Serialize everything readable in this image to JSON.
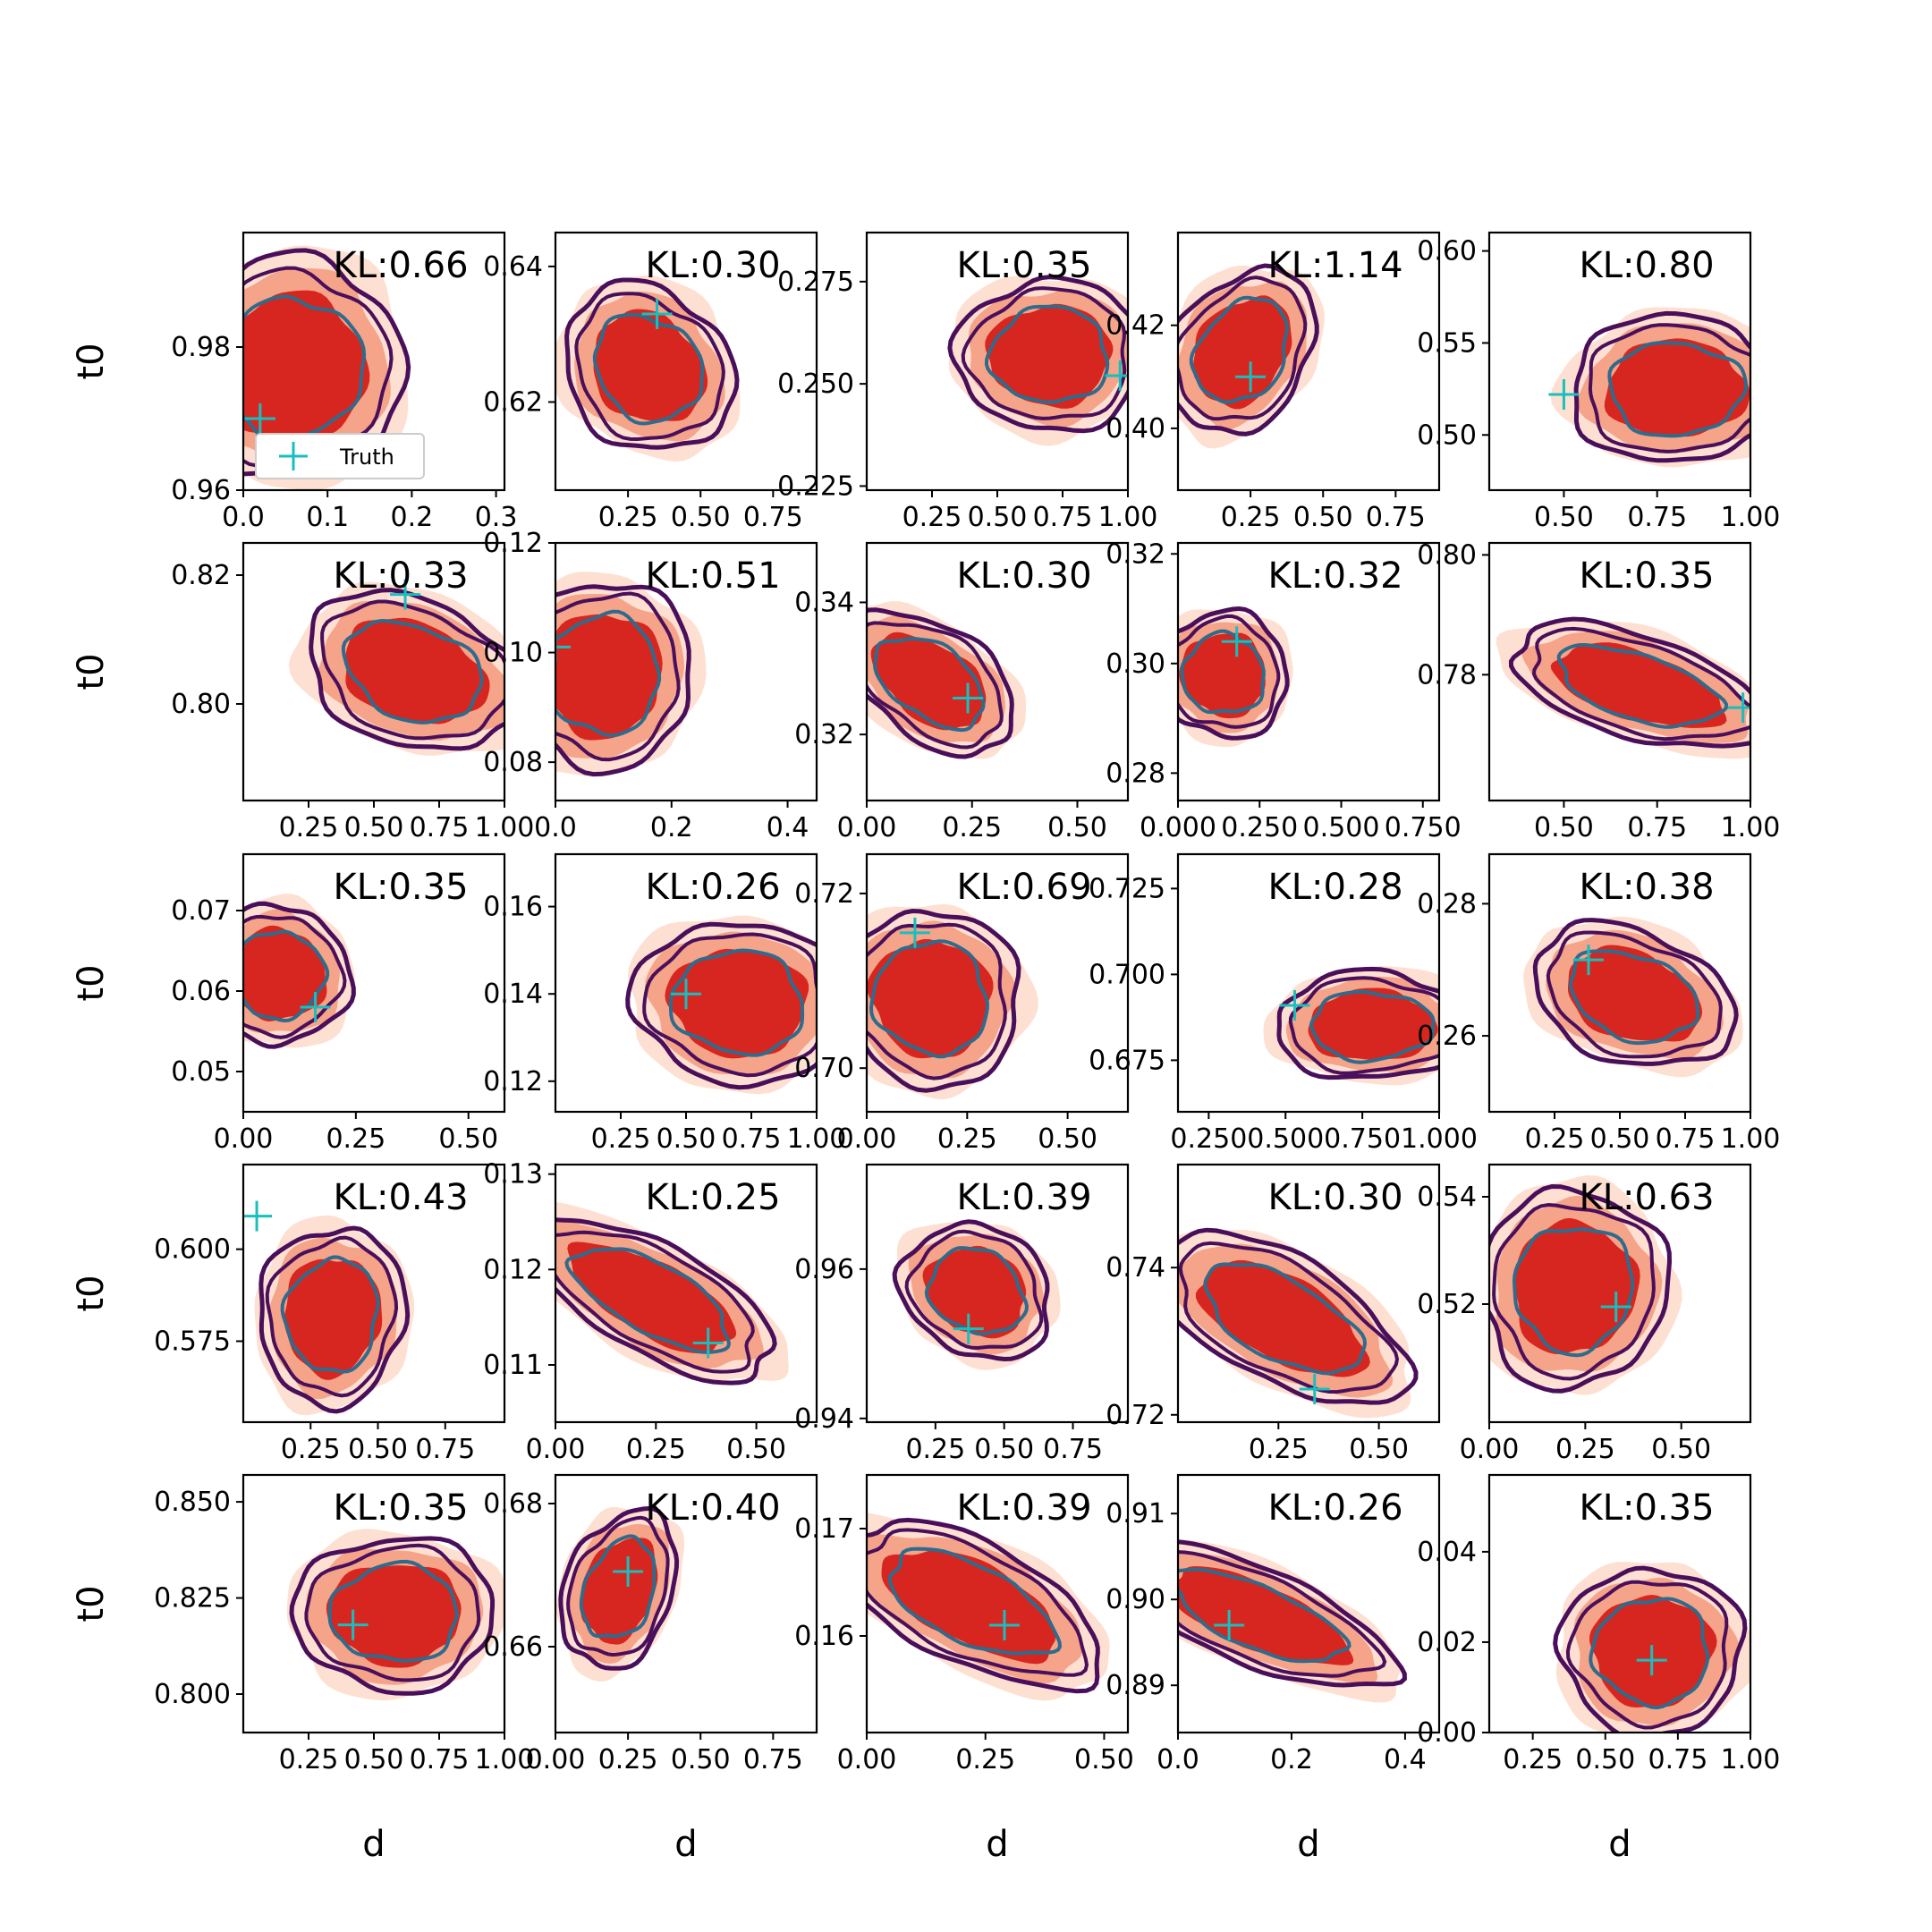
{
  "chart_data": {
    "type": "contour",
    "layout": {
      "rows": 5,
      "cols": 5
    },
    "colors": {
      "fill_light": "#fde0d2",
      "fill_mid": "#f5a48a",
      "fill_dark": "#d7261f",
      "contour_outer": "#4a0f5a",
      "contour_inner": "#2f6b8c",
      "truth_marker": "#17bfbf"
    },
    "xlabel": "d",
    "ylabel": "t0",
    "legend": {
      "label": "Truth",
      "position": "lower-left of first panel"
    },
    "panels": [
      {
        "kl": "KL:0.66",
        "xticks": [
          "0.0",
          "0.1",
          "0.2",
          "0.3"
        ],
        "yticks": [
          "0.96",
          "0.98"
        ],
        "xlim": [
          0,
          0.31
        ],
        "ylim": [
          0.96,
          0.996
        ],
        "center": [
          0.06,
          0.977
        ],
        "spread": [
          0.09,
          0.011
        ],
        "angle": 0.35,
        "truth": [
          0.02,
          0.97
        ]
      },
      {
        "kl": "KL:0.30",
        "xticks": [
          "0.25",
          "0.50",
          "0.75"
        ],
        "yticks": [
          "0.62",
          "0.64"
        ],
        "xlim": [
          0,
          0.9
        ],
        "ylim": [
          0.607,
          0.645
        ],
        "center": [
          0.32,
          0.625
        ],
        "spread": [
          0.22,
          0.008
        ],
        "angle": 0.75,
        "truth": [
          0.35,
          0.633
        ]
      },
      {
        "kl": "KL:0.35",
        "xticks": [
          "0.25",
          "0.50",
          "0.75",
          "1.00"
        ],
        "yticks": [
          "0.225",
          "0.250",
          "0.275"
        ],
        "xlim": [
          0,
          1.0
        ],
        "ylim": [
          0.224,
          0.287
        ],
        "center": [
          0.7,
          0.257
        ],
        "spread": [
          0.25,
          0.013
        ],
        "angle": 0.0,
        "truth": [
          0.97,
          0.252
        ]
      },
      {
        "kl": "KL:1.14",
        "xticks": [
          "0.25",
          "0.50",
          "0.75"
        ],
        "yticks": [
          "0.40",
          "0.42"
        ],
        "xlim": [
          0,
          0.9
        ],
        "ylim": [
          0.388,
          0.438
        ],
        "center": [
          0.22,
          0.415
        ],
        "spread": [
          0.16,
          0.012
        ],
        "angle": 0.6,
        "truth": [
          0.25,
          0.41
        ]
      },
      {
        "kl": "KL:0.80",
        "xticks": [
          "0.50",
          "0.75",
          "1.00"
        ],
        "yticks": [
          "0.50",
          "0.55",
          "0.60"
        ],
        "xlim": [
          0.3,
          1.0
        ],
        "ylim": [
          0.47,
          0.61
        ],
        "center": [
          0.8,
          0.525
        ],
        "spread": [
          0.2,
          0.028
        ],
        "angle": 0.0,
        "truth": [
          0.5,
          0.522
        ]
      },
      {
        "kl": "KL:0.33",
        "xticks": [
          "0.25",
          "0.50",
          "0.75",
          "1.00"
        ],
        "yticks": [
          "0.80",
          "0.82"
        ],
        "xlim": [
          0.0,
          1.0
        ],
        "ylim": [
          0.785,
          0.825
        ],
        "center": [
          0.65,
          0.805
        ],
        "spread": [
          0.3,
          0.008
        ],
        "angle": 0.35,
        "truth": [
          0.62,
          0.817
        ]
      },
      {
        "kl": "KL:0.51",
        "xticks": [
          "0.0",
          "0.2",
          "0.4"
        ],
        "yticks": [
          "0.08",
          "0.10",
          "0.12"
        ],
        "xlim": [
          0,
          0.45
        ],
        "ylim": [
          0.073,
          0.12
        ],
        "center": [
          0.08,
          0.096
        ],
        "spread": [
          0.11,
          0.012
        ],
        "angle": 0.0,
        "truth": [
          0.0,
          0.101
        ]
      },
      {
        "kl": "KL:0.30",
        "xticks": [
          "0.00",
          "0.25",
          "0.50"
        ],
        "yticks": [
          "0.32",
          "0.34"
        ],
        "xlim": [
          0,
          0.62
        ],
        "ylim": [
          0.31,
          0.349
        ],
        "center": [
          0.15,
          0.328
        ],
        "spread": [
          0.16,
          0.006
        ],
        "angle": 0.6,
        "truth": [
          0.24,
          0.3255
        ]
      },
      {
        "kl": "KL:0.32",
        "xticks": [
          "0.000",
          "0.250",
          "0.500",
          "0.750"
        ],
        "yticks": [
          "0.28",
          "0.30",
          "0.32"
        ],
        "xlim": [
          0,
          0.8
        ],
        "ylim": [
          0.275,
          0.322
        ],
        "center": [
          0.14,
          0.298
        ],
        "spread": [
          0.14,
          0.008
        ],
        "angle": 0.5,
        "truth": [
          0.18,
          0.304
        ]
      },
      {
        "kl": "KL:0.35",
        "xticks": [
          "0.50",
          "0.75",
          "1.00"
        ],
        "yticks": [
          "0.78",
          "0.80"
        ],
        "xlim": [
          0.3,
          1.0
        ],
        "ylim": [
          0.759,
          0.802
        ],
        "center": [
          0.7,
          0.778
        ],
        "spread": [
          0.25,
          0.006
        ],
        "angle": 0.3,
        "truth": [
          0.98,
          0.7745
        ]
      },
      {
        "kl": "KL:0.35",
        "xticks": [
          "0.00",
          "0.25",
          "0.50"
        ],
        "yticks": [
          "0.05",
          "0.06",
          "0.07"
        ],
        "xlim": [
          0,
          0.58
        ],
        "ylim": [
          0.045,
          0.077
        ],
        "center": [
          0.08,
          0.062
        ],
        "spread": [
          0.11,
          0.006
        ],
        "angle": 0.6,
        "truth": [
          0.16,
          0.058
        ]
      },
      {
        "kl": "KL:0.26",
        "xticks": [
          "0.25",
          "0.50",
          "0.75",
          "1.00"
        ],
        "yticks": [
          "0.12",
          "0.14",
          "0.16"
        ],
        "xlim": [
          0,
          1.0
        ],
        "ylim": [
          0.113,
          0.172
        ],
        "center": [
          0.7,
          0.138
        ],
        "spread": [
          0.28,
          0.013
        ],
        "angle": 0.1,
        "truth": [
          0.5,
          0.14
        ]
      },
      {
        "kl": "KL:0.69",
        "xticks": [
          "0.00",
          "0.25",
          "0.50"
        ],
        "yticks": [
          "0.70",
          "0.72"
        ],
        "xlim": [
          0,
          0.65
        ],
        "ylim": [
          0.695,
          0.7245
        ],
        "center": [
          0.16,
          0.708
        ],
        "spread": [
          0.16,
          0.007
        ],
        "angle": 0.6,
        "truth": [
          0.12,
          0.7155
        ]
      },
      {
        "kl": "KL:0.28",
        "xticks": [
          "0.250",
          "0.500",
          "0.750",
          "1.000"
        ],
        "yticks": [
          "0.675",
          "0.700",
          "0.725"
        ],
        "xlim": [
          0.15,
          1.0
        ],
        "ylim": [
          0.66,
          0.735
        ],
        "center": [
          0.78,
          0.685
        ],
        "spread": [
          0.22,
          0.011
        ],
        "angle": 0.0,
        "truth": [
          0.53,
          0.691
        ]
      },
      {
        "kl": "KL:0.38",
        "xticks": [
          "0.25",
          "0.50",
          "0.75",
          "1.00"
        ],
        "yticks": [
          "0.26",
          "0.28"
        ],
        "xlim": [
          0,
          1.0
        ],
        "ylim": [
          0.2485,
          0.2875
        ],
        "center": [
          0.55,
          0.266
        ],
        "spread": [
          0.28,
          0.007
        ],
        "angle": 0.35,
        "truth": [
          0.38,
          0.2715
        ]
      },
      {
        "kl": "KL:0.43",
        "xticks": [
          "0.25",
          "0.50",
          "0.75"
        ],
        "yticks": [
          "0.575",
          "0.600"
        ],
        "xlim": [
          0,
          0.97
        ],
        "ylim": [
          0.553,
          0.623
        ],
        "center": [
          0.33,
          0.582
        ],
        "spread": [
          0.19,
          0.017
        ],
        "angle": 0.1,
        "truth": [
          0.05,
          0.609
        ]
      },
      {
        "kl": "KL:0.25",
        "xticks": [
          "0.00",
          "0.25",
          "0.50"
        ],
        "yticks": [
          "0.11",
          "0.12",
          "0.13"
        ],
        "xlim": [
          0,
          0.65
        ],
        "ylim": [
          0.104,
          0.131
        ],
        "center": [
          0.24,
          0.117
        ],
        "spread": [
          0.24,
          0.004
        ],
        "angle": 0.5,
        "truth": [
          0.38,
          0.1123
        ]
      },
      {
        "kl": "KL:0.39",
        "xticks": [
          "0.25",
          "0.50",
          "0.75"
        ],
        "yticks": [
          "0.94",
          "0.96"
        ],
        "xlim": [
          0,
          0.95
        ],
        "ylim": [
          0.9395,
          0.974
        ],
        "center": [
          0.4,
          0.957
        ],
        "spread": [
          0.2,
          0.006
        ],
        "angle": 0.5,
        "truth": [
          0.37,
          0.952
        ]
      },
      {
        "kl": "KL:0.30",
        "xticks": [
          "0.25",
          "0.50"
        ],
        "yticks": [
          "0.72",
          "0.74"
        ],
        "xlim": [
          0,
          0.65
        ],
        "ylim": [
          0.719,
          0.754
        ],
        "center": [
          0.26,
          0.733
        ],
        "spread": [
          0.24,
          0.006
        ],
        "angle": 0.5,
        "truth": [
          0.34,
          0.7235
        ]
      },
      {
        "kl": "KL:0.63",
        "xticks": [
          "0.00",
          "0.25",
          "0.50"
        ],
        "yticks": [
          "0.52",
          "0.54"
        ],
        "xlim": [
          0,
          0.68
        ],
        "ylim": [
          0.498,
          0.546
        ],
        "center": [
          0.22,
          0.523
        ],
        "spread": [
          0.17,
          0.013
        ],
        "angle": 0.2,
        "truth": [
          0.33,
          0.5195
        ]
      },
      {
        "kl": "KL:0.35",
        "xticks": [
          "0.25",
          "0.50",
          "0.75",
          "1.00"
        ],
        "yticks": [
          "0.800",
          "0.825",
          "0.850"
        ],
        "xlim": [
          0,
          1.0
        ],
        "ylim": [
          0.79,
          0.857
        ],
        "center": [
          0.58,
          0.821
        ],
        "spread": [
          0.27,
          0.014
        ],
        "angle": 0.0,
        "truth": [
          0.42,
          0.818
        ]
      },
      {
        "kl": "KL:0.40",
        "xticks": [
          "0.00",
          "0.25",
          "0.50",
          "0.75"
        ],
        "yticks": [
          "0.66",
          "0.68"
        ],
        "xlim": [
          0,
          0.9
        ],
        "ylim": [
          0.648,
          0.684
        ],
        "center": [
          0.22,
          0.668
        ],
        "spread": [
          0.13,
          0.008
        ],
        "angle": 0.35,
        "truth": [
          0.25,
          0.6705
        ]
      },
      {
        "kl": "KL:0.39",
        "xticks": [
          "0.00",
          "0.25",
          "0.50"
        ],
        "yticks": [
          "0.16",
          "0.17"
        ],
        "xlim": [
          0,
          0.55
        ],
        "ylim": [
          0.151,
          0.175
        ],
        "center": [
          0.22,
          0.163
        ],
        "spread": [
          0.21,
          0.004
        ],
        "angle": 0.45,
        "truth": [
          0.29,
          0.161
        ]
      },
      {
        "kl": "KL:0.26",
        "xticks": [
          "0.0",
          "0.2",
          "0.4"
        ],
        "yticks": [
          "0.89",
          "0.90",
          "0.91"
        ],
        "xlim": [
          0,
          0.46
        ],
        "ylim": [
          0.8845,
          0.9145
        ],
        "center": [
          0.14,
          0.898
        ],
        "spread": [
          0.18,
          0.004
        ],
        "angle": 0.4,
        "truth": [
          0.09,
          0.897
        ]
      },
      {
        "kl": "KL:0.35",
        "xticks": [
          "0.25",
          "0.50",
          "0.75",
          "1.00"
        ],
        "yticks": [
          "0.00",
          "0.02",
          "0.04"
        ],
        "xlim": [
          0.1,
          1.0
        ],
        "ylim": [
          0.0,
          0.057
        ],
        "center": [
          0.66,
          0.018
        ],
        "spread": [
          0.22,
          0.013
        ],
        "angle": 0.0,
        "truth": [
          0.66,
          0.016
        ]
      }
    ]
  }
}
